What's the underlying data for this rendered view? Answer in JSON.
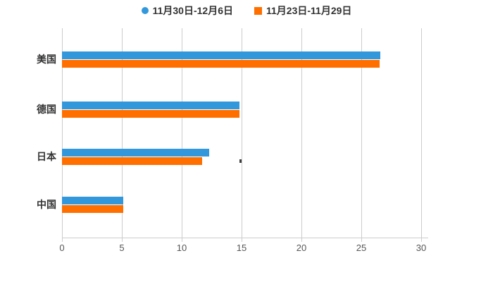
{
  "chart_data": {
    "type": "bar",
    "orientation": "horizontal",
    "title": "",
    "xlabel": "",
    "ylabel": "",
    "categories": [
      "美国",
      "德国",
      "日本",
      "中国"
    ],
    "series": [
      {
        "name": "11月30日-12月6日",
        "color": "#3398db",
        "marker": "circle",
        "values": [
          26.6,
          14.8,
          12.3,
          5.1
        ]
      },
      {
        "name": "11月23日-11月29日",
        "color": "#ff6f00",
        "marker": "square",
        "values": [
          26.5,
          14.8,
          11.7,
          5.1
        ]
      }
    ],
    "xlim": [
      0,
      30
    ],
    "xticks": [
      0,
      5,
      10,
      15,
      20,
      25,
      30
    ],
    "grid": true,
    "legend_position": "top-center",
    "colors": {
      "grid_line": "#cccccc",
      "tick_label": "#565656",
      "category_label": "#333333",
      "background": "#ffffff"
    }
  }
}
